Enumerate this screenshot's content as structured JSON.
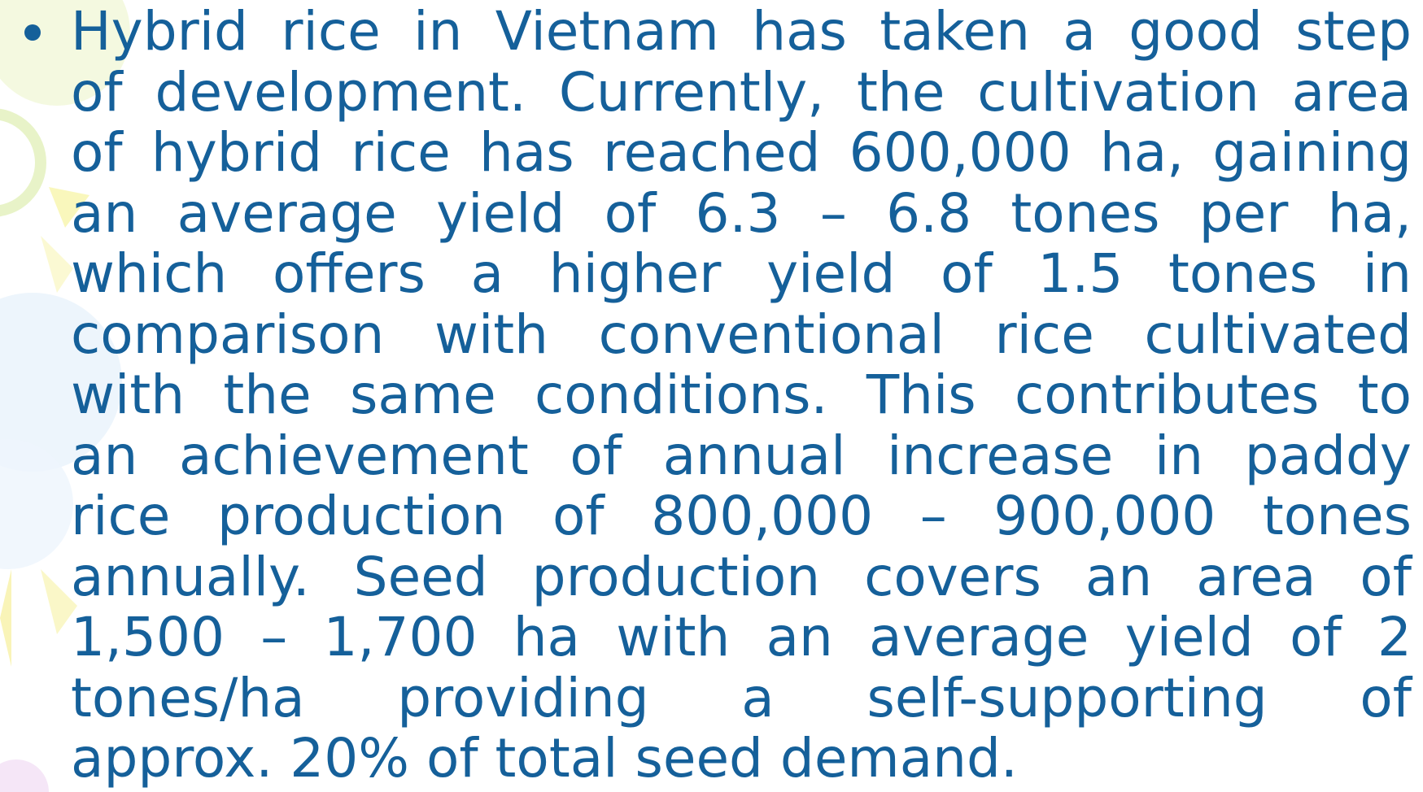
{
  "slide": {
    "bullet": {
      "lines": [
        "Hybrid rice in Vietnam has taken a good step",
        "of development. Currently, the cultivation area",
        "of hybrid rice has reached 600,000 ha, gaining",
        "an average yield of 6.3 – 6.8 tones per ha,",
        "which offers a higher yield of 1.5 tones in",
        "comparison with conventional rice cultivated",
        "with the same conditions. This contributes to",
        "an achievement of annual increase in paddy",
        "rice production of 800,000 – 900,000 tones",
        "annually. Seed production covers an area of",
        "1,500 – 1,700 ha with an average yield of 2",
        "tones/ha providing a self-supporting of",
        "approx. 20% of total seed demand."
      ]
    }
  }
}
